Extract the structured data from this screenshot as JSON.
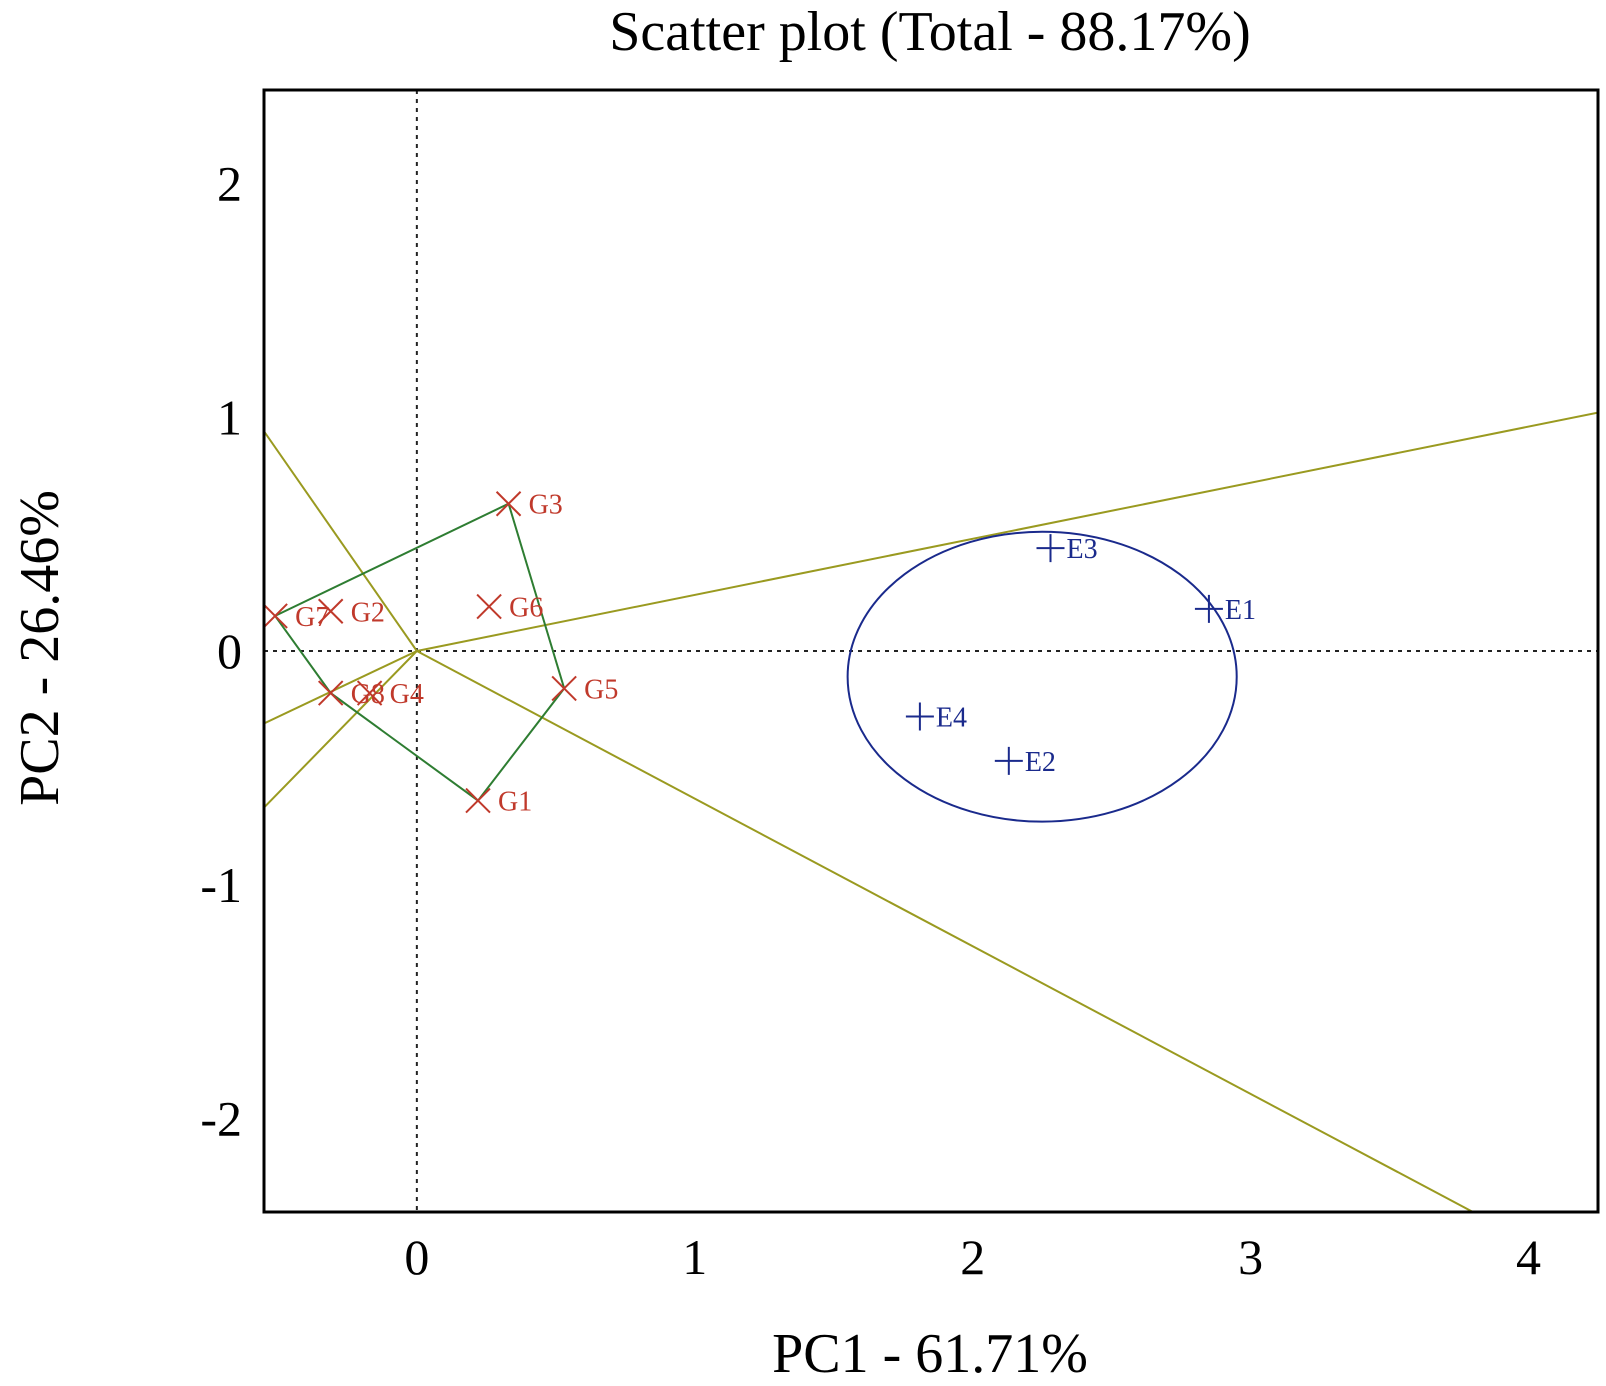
{
  "chart_data": {
    "type": "scatter",
    "title": "Scatter plot (Total - 88.17%)",
    "xlabel": "PC1 - 61.71%",
    "ylabel": "PC2 - 26.46%",
    "xlim": [
      -0.55,
      4.25
    ],
    "ylim": [
      -2.4,
      2.4
    ],
    "x_ticks": [
      {
        "value": 0,
        "label": "0"
      },
      {
        "value": 1,
        "label": "1"
      },
      {
        "value": 2,
        "label": "2"
      },
      {
        "value": 3,
        "label": "3"
      },
      {
        "value": 4,
        "label": "4"
      }
    ],
    "y_ticks": [
      {
        "value": 2,
        "label": "2"
      },
      {
        "value": 1,
        "label": "1"
      },
      {
        "value": 0,
        "label": "0"
      },
      {
        "value": -1,
        "label": "-1"
      },
      {
        "value": -2,
        "label": "-2"
      }
    ],
    "genotypes": [
      {
        "label": "G1",
        "x": 0.22,
        "y": -0.64
      },
      {
        "label": "G2",
        "x": -0.31,
        "y": 0.17
      },
      {
        "label": "G3",
        "x": 0.33,
        "y": 0.63
      },
      {
        "label": "G4",
        "x": -0.17,
        "y": -0.18
      },
      {
        "label": "G5",
        "x": 0.53,
        "y": -0.16
      },
      {
        "label": "G6",
        "x": 0.26,
        "y": 0.19
      },
      {
        "label": "G7",
        "x": -0.51,
        "y": 0.15
      },
      {
        "label": "G8",
        "x": -0.31,
        "y": -0.18
      }
    ],
    "environments": [
      {
        "label": "E1",
        "x": 2.85,
        "y": 0.18
      },
      {
        "label": "E2",
        "x": 2.13,
        "y": -0.47
      },
      {
        "label": "E3",
        "x": 2.28,
        "y": 0.44
      },
      {
        "label": "E4",
        "x": 1.81,
        "y": -0.28
      }
    ],
    "hull_order": [
      "G3",
      "G5",
      "G1",
      "G8",
      "G7",
      "G3"
    ],
    "sector_line_points": [
      {
        "x": 4.25,
        "y": 1.02
      },
      {
        "x": -0.55,
        "y": -0.31
      },
      {
        "x": -0.55,
        "y": 0.94
      },
      {
        "x": 3.8,
        "y": -2.4
      },
      {
        "x": -0.55,
        "y": -0.67
      }
    ],
    "ellipse": {
      "cx": 2.25,
      "cy": -0.11,
      "rx": 0.7,
      "ry": 0.62
    },
    "colors": {
      "genotype": "#c0392b",
      "environment": "#1a2a8c",
      "hull": "#2e7d32",
      "sector": "#9a9a20",
      "axis": "#000000"
    }
  }
}
